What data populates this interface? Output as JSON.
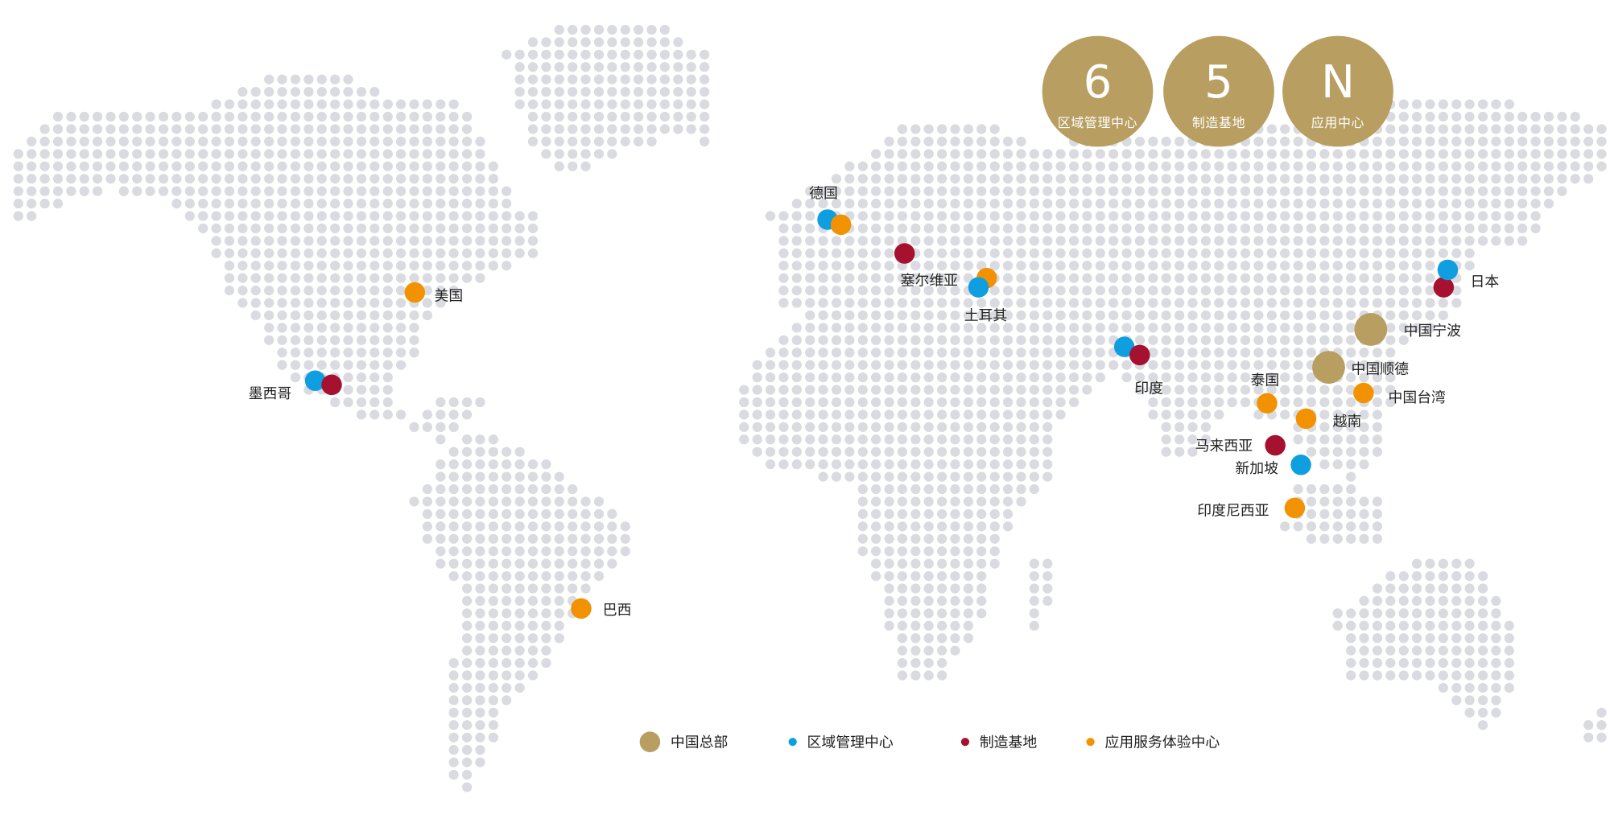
{
  "colors": {
    "hq": "#b89e60",
    "regional": "#0f9ee0",
    "manufacturing": "#a5112e",
    "application": "#f39200",
    "land_dot": "#d9dbe0"
  },
  "stats": [
    {
      "value": "6",
      "label": "区域管理中心"
    },
    {
      "value": "5",
      "label": "制造基地"
    },
    {
      "value": "N",
      "label": "应用中心"
    }
  ],
  "locations": [
    {
      "name": "德国",
      "types": [
        "regional",
        "application"
      ]
    },
    {
      "name": "塞尔维亚",
      "types": [
        "manufacturing",
        "application"
      ]
    },
    {
      "name": "土耳其",
      "types": [
        "regional"
      ]
    },
    {
      "name": "美国",
      "types": [
        "application"
      ]
    },
    {
      "name": "墨西哥",
      "types": [
        "regional",
        "manufacturing"
      ]
    },
    {
      "name": "巴西",
      "types": [
        "application"
      ]
    },
    {
      "name": "印度",
      "types": [
        "regional",
        "manufacturing"
      ]
    },
    {
      "name": "日本",
      "types": [
        "regional",
        "manufacturing"
      ]
    },
    {
      "name": "中国宁波",
      "types": [
        "hq"
      ]
    },
    {
      "name": "中国顺德",
      "types": [
        "hq"
      ]
    },
    {
      "name": "中国台湾",
      "types": [
        "application"
      ]
    },
    {
      "name": "泰国",
      "types": [
        "application"
      ]
    },
    {
      "name": "越南",
      "types": [
        "application"
      ]
    },
    {
      "name": "马来西亚",
      "types": [
        "manufacturing"
      ]
    },
    {
      "name": "新加坡",
      "types": [
        "regional"
      ]
    },
    {
      "name": "印度尼西亚",
      "types": [
        "application"
      ]
    }
  ],
  "legend": [
    {
      "key": "hq",
      "label": "中国总部"
    },
    {
      "key": "regional",
      "label": "区域管理中心"
    },
    {
      "key": "manufacturing",
      "label": "制造基地"
    },
    {
      "key": "application",
      "label": "应用服务体验中心"
    }
  ]
}
